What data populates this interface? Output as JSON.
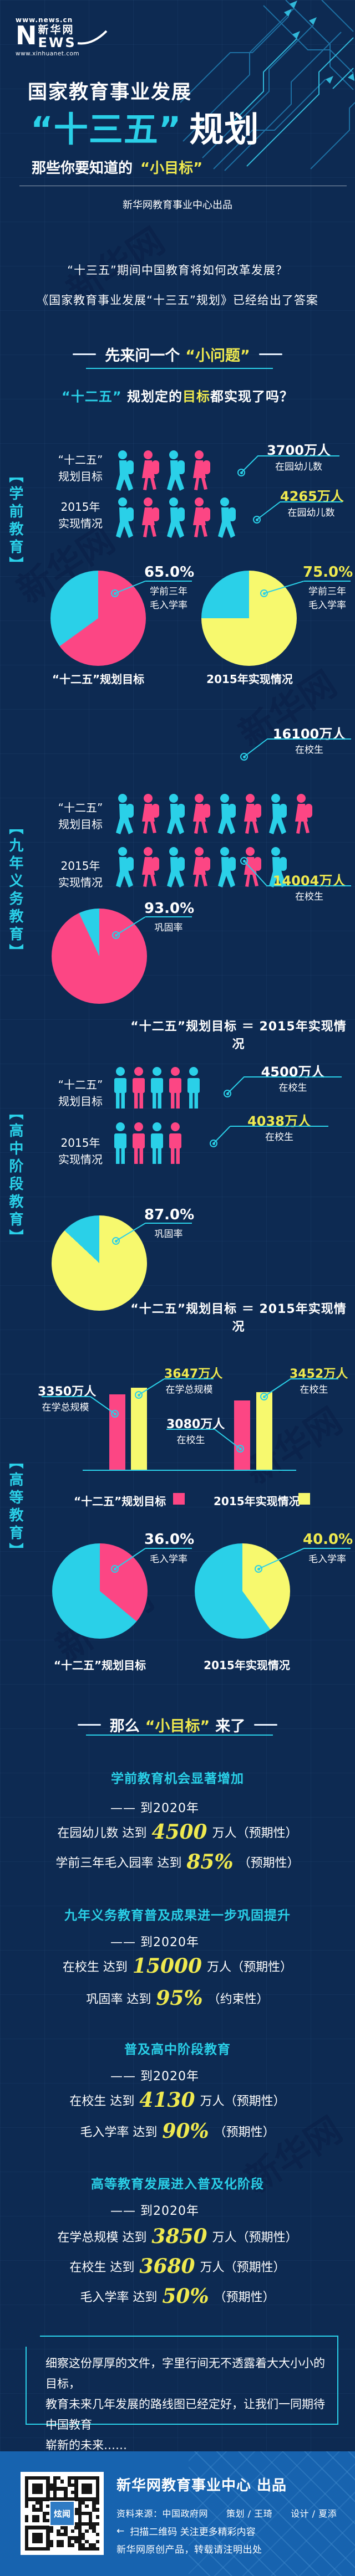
{
  "colors": {
    "cyan": "#2ad0e8",
    "pink": "#fc4684",
    "yellow": "#f7f96e",
    "yellow_text": "#efe94f"
  },
  "watermark": "新华网",
  "header": {
    "url_top": "www.news.cn",
    "logo_n": "N",
    "logo_brand": "新华网",
    "logo_ews": "EWS",
    "url_bottom": "www.xinhuanet.com",
    "title_line1": "国家教育事业发展",
    "title_quote": "“十三五”",
    "title_rest": "规划",
    "subtitle_prefix": "那些你要知道的",
    "subtitle_highlight": "“小目标”",
    "byline": "新华网教育事业中心出品"
  },
  "intro": {
    "q1": "“十三五”期间中国教育将如何改革发展？",
    "q2": "《国家教育事业发展“十三五”规划》已经给出了答案",
    "lead_prefix": "先来问一个",
    "lead_highlight": "“小问题”",
    "q3_highlight": "“十二五”",
    "q3_mid": "规划定的",
    "q3_target": "目标",
    "q3_suffix": "都实现了吗？"
  },
  "sections": [
    {
      "label": "【学前教育】",
      "rows": [
        {
          "label1": "“十二五”",
          "label2": "规划目标",
          "icons": [
            "cyan",
            "pink",
            "cyan",
            "pink"
          ],
          "callout": {
            "value": "3700万人",
            "desc": "在园幼儿数",
            "color": "white"
          }
        },
        {
          "label1": "2015年",
          "label2": "实现情况",
          "icons": [
            "cyan",
            "pink",
            "cyan",
            "pink",
            "cyan"
          ],
          "callout": {
            "value": "4265万人",
            "desc": "在园幼儿数",
            "color": "yellow"
          }
        }
      ],
      "pies": [
        {
          "pct": "65.0%",
          "pct_color": "white",
          "desc1": "学前三年",
          "desc2": "毛入学率",
          "value": 65,
          "color": "pink",
          "caption": "“十二五”规划目标"
        },
        {
          "pct": "75.0%",
          "pct_color": "yellow",
          "desc1": "学前三年",
          "desc2": "毛入学率",
          "value": 75,
          "color": "yellow",
          "caption": "2015年实现情况"
        }
      ]
    },
    {
      "label": "【九年义务教育】",
      "rows": [
        {
          "label1": "“十二五”",
          "label2": "规划目标",
          "icons": [
            "cyan",
            "pink",
            "cyan",
            "pink",
            "cyan",
            "pink",
            "cyan",
            "pink"
          ],
          "callout": {
            "value": "16100万人",
            "desc": "在校生",
            "color": "white"
          }
        },
        {
          "label1": "2015年",
          "label2": "实现情况",
          "icons": [
            "cyan",
            "pink",
            "cyan",
            "pink",
            "cyan",
            "pink",
            "cyan"
          ],
          "callout": {
            "value": "14004万人",
            "desc": "在校生",
            "color": "yellow"
          }
        }
      ],
      "pie": {
        "pct": "93.0%",
        "pct_color": "white",
        "desc": "巩固率",
        "value": 93,
        "color": "pink"
      },
      "equation": "“十二五”规划目标 ＝ 2015年实现情况"
    },
    {
      "label": "【高中阶段教育】",
      "rows": [
        {
          "label1": "“十二五”",
          "label2": "规划目标",
          "icons": [
            "cyan",
            "pink",
            "cyan",
            "pink",
            "cyan"
          ],
          "callout": {
            "value": "4500万人",
            "desc": "在校生",
            "color": "white"
          }
        },
        {
          "label1": "2015年",
          "label2": "实现情况",
          "icons": [
            "cyan",
            "pink",
            "cyan",
            "pink"
          ],
          "callout": {
            "value": "4038万人",
            "desc": "在校生",
            "color": "yellow"
          }
        }
      ],
      "pie": {
        "pct": "87.0%",
        "pct_color": "white",
        "desc": "巩固率",
        "value": 87,
        "color": "yellow"
      },
      "equation": "“十二五”规划目标 ＝ 2015年实现情况"
    },
    {
      "label": "【高等教育】",
      "bars": {
        "groups": [
          {
            "plan": {
              "value": 3350,
              "label": "3350万人",
              "desc": "在学总规模",
              "color": "white"
            },
            "actual": {
              "value": 3647,
              "label": "3647万人",
              "desc": "在学总规模",
              "color": "yellow"
            }
          },
          {
            "plan": {
              "value": 3080,
              "label": "3080万人",
              "desc": "在校生",
              "color": "white"
            },
            "actual": {
              "value": 3452,
              "label": "3452万人",
              "desc": "在校生",
              "color": "yellow"
            }
          }
        ],
        "legend": [
          {
            "label": "“十二五”规划目标",
            "color": "pink"
          },
          {
            "label": "2015年实现情况",
            "color": "yellow"
          }
        ]
      },
      "pies": [
        {
          "pct": "36.0%",
          "pct_color": "white",
          "desc1": "毛入学率",
          "value": 36,
          "color": "pink",
          "caption": "“十二五”规划目标"
        },
        {
          "pct": "40.0%",
          "pct_color": "yellow",
          "desc1": "毛入学率",
          "value": 40,
          "color": "yellow",
          "caption": "2015年实现情况"
        }
      ]
    }
  ],
  "goals": {
    "lead_prefix": "那么",
    "lead_highlight": "“小目标”",
    "lead_suffix": "来了",
    "groups": [
      {
        "title": "学前教育机会显著增加",
        "when": "—— 到2020年",
        "items": [
          {
            "prefix": "在园幼儿数 达到",
            "num": "4500",
            "suffix": "万人（预期性）"
          },
          {
            "prefix": "学前三年毛入园率 达到",
            "num": "85%",
            "suffix": "（预期性）"
          }
        ]
      },
      {
        "title": "九年义务教育普及成果进一步巩固提升",
        "when": "—— 到2020年",
        "items": [
          {
            "prefix": "在校生 达到",
            "num": "15000",
            "suffix": "万人（预期性）"
          },
          {
            "prefix": "巩固率 达到",
            "num": "95%",
            "suffix": "（约束性）"
          }
        ]
      },
      {
        "title": "普及高中阶段教育",
        "when": "—— 到2020年",
        "items": [
          {
            "prefix": "在校生 达到",
            "num": "4130",
            "suffix": "万人（预期性）"
          },
          {
            "prefix": "毛入学率 达到",
            "num": "90%",
            "suffix": "（预期性）"
          }
        ]
      },
      {
        "title": "高等教育发展进入普及化阶段",
        "when": "—— 到2020年",
        "items": [
          {
            "prefix": "在学总规模 达到",
            "num": "3850",
            "suffix": "万人（预期性）"
          },
          {
            "prefix": "在校生 达到",
            "num": "3680",
            "suffix": "万人（预期性）"
          },
          {
            "prefix": "毛入学率 达到",
            "num": "50%",
            "suffix": "（预期性）"
          }
        ]
      }
    ],
    "outro_lines": [
      "细察这份厚厚的文件，字里行间无不透露着大大小小的目标，",
      "教育未来几年发展的路线图已经定好，让我们一同期待中国教育",
      "崭新的未来……"
    ]
  },
  "footer": {
    "publisher": "新华网教育事业中心 出品",
    "credits": "资料来源：中国政府网　　策划 / 王琦　　设计 / 夏添",
    "scan_arrow": "←",
    "scan_text": "扫描二维码 关注更多精彩内容",
    "note": "新华网原创产品，转载请注明出处",
    "qr_label": "炫闻"
  },
  "chart_data": [
    {
      "type": "bar",
      "subtype": "pictogram",
      "section": "学前教育",
      "title": "在园幼儿数",
      "categories": [
        "“十二五”规划目标",
        "2015年实现情况"
      ],
      "values": [
        3700,
        4265
      ],
      "unit": "万人",
      "icon_counts": [
        4,
        5
      ]
    },
    {
      "type": "pie",
      "section": "学前教育",
      "title": "学前三年毛入学率",
      "unit": "%",
      "series": [
        {
          "name": "“十二五”规划目标",
          "value": 65.0
        },
        {
          "name": "2015年实现情况",
          "value": 75.0
        }
      ]
    },
    {
      "type": "bar",
      "subtype": "pictogram",
      "section": "九年义务教育",
      "title": "在校生",
      "categories": [
        "“十二五”规划目标",
        "2015年实现情况"
      ],
      "values": [
        16100,
        14004
      ],
      "unit": "万人",
      "icon_counts": [
        8,
        7
      ]
    },
    {
      "type": "pie",
      "section": "九年义务教育",
      "title": "巩固率",
      "unit": "%",
      "series": [
        {
          "name": "“十二五”规划目标 ＝ 2015年实现情况",
          "value": 93.0
        }
      ]
    },
    {
      "type": "bar",
      "subtype": "pictogram",
      "section": "高中阶段教育",
      "title": "在校生",
      "categories": [
        "“十二五”规划目标",
        "2015年实现情况"
      ],
      "values": [
        4500,
        4038
      ],
      "unit": "万人",
      "icon_counts": [
        5,
        4
      ]
    },
    {
      "type": "pie",
      "section": "高中阶段教育",
      "title": "巩固率",
      "unit": "%",
      "series": [
        {
          "name": "“十二五”规划目标 ＝ 2015年实现情况",
          "value": 87.0
        }
      ]
    },
    {
      "type": "bar",
      "section": "高等教育",
      "categories": [
        "在学总规模",
        "在校生"
      ],
      "unit": "万人",
      "series": [
        {
          "name": "“十二五”规划目标",
          "values": [
            3350,
            3080
          ]
        },
        {
          "name": "2015年实现情况",
          "values": [
            3647,
            3452
          ]
        }
      ],
      "legend_position": "bottom"
    },
    {
      "type": "pie",
      "section": "高等教育",
      "title": "毛入学率",
      "unit": "%",
      "series": [
        {
          "name": "“十二五”规划目标",
          "value": 36.0
        },
        {
          "name": "2015年实现情况",
          "value": 40.0
        }
      ]
    }
  ]
}
